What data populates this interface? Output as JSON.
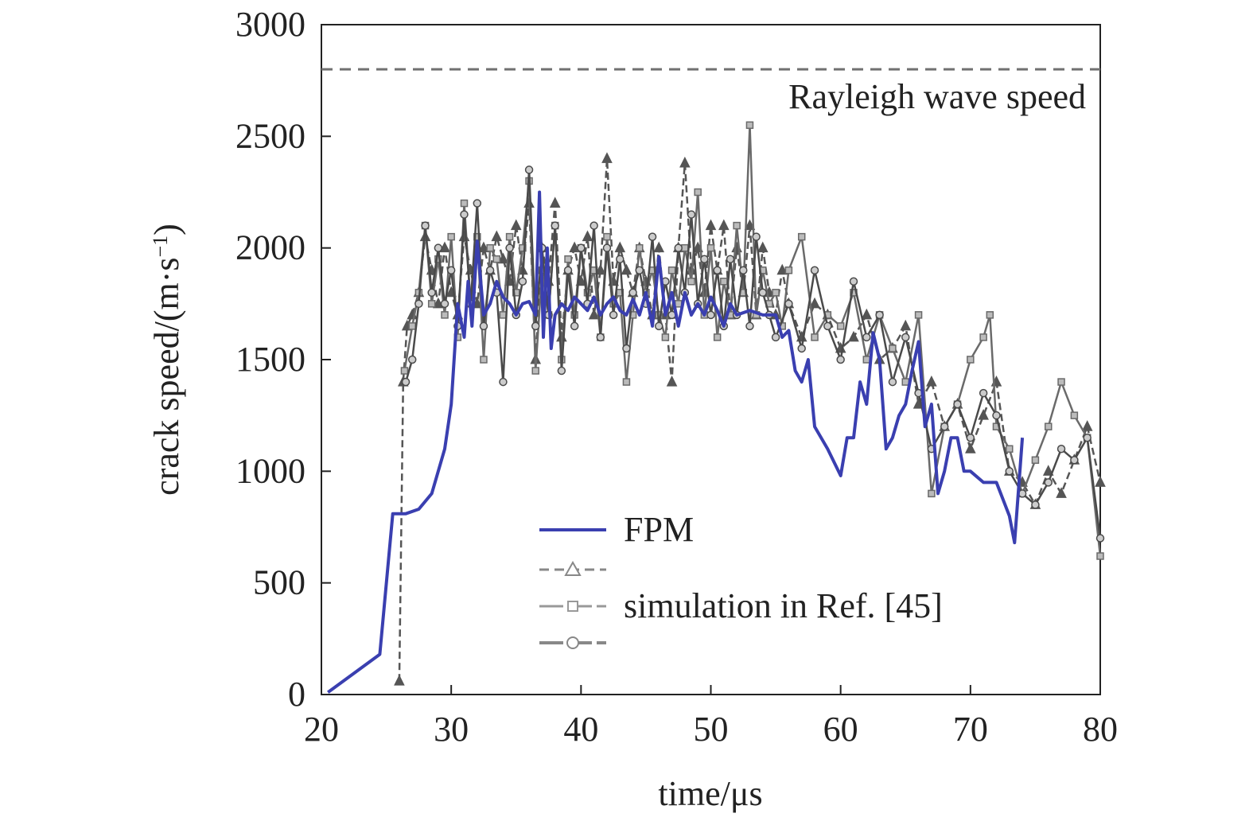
{
  "chart_data": {
    "type": "line",
    "xlabel": "time/μs",
    "ylabel": "crack speed/(m·s",
    "ylabel_sup": "−1",
    "ylabel_close": ")",
    "xlim": [
      20,
      80
    ],
    "ylim": [
      0,
      3000
    ],
    "xticks": [
      20,
      30,
      40,
      50,
      60,
      70,
      80
    ],
    "yticks": [
      0,
      500,
      1000,
      1500,
      2000,
      2500,
      3000
    ],
    "grid": false,
    "legend_position": "lower-center",
    "reference_line": {
      "y": 2800,
      "label": "Rayleigh wave speed",
      "style": "dashed",
      "color": "#707070"
    },
    "legend": [
      {
        "label": "FPM",
        "series_index": 0
      },
      {
        "label": "simulation in Ref. [45]",
        "series_index": [
          1,
          2,
          3
        ]
      }
    ],
    "series": [
      {
        "name": "FPM",
        "color": "#3a3fb0",
        "style": "solid",
        "marker": "none",
        "x": [
          20.5,
          24.5,
          25.5,
          26.5,
          27.5,
          28.5,
          29.5,
          30.0,
          30.5,
          31.0,
          31.3,
          31.6,
          32.0,
          32.5,
          33.0,
          33.5,
          34.0,
          34.5,
          35.0,
          35.5,
          36.0,
          36.5,
          36.8,
          37.1,
          37.4,
          37.7,
          38.0,
          38.5,
          39.0,
          39.5,
          40.0,
          40.5,
          41.0,
          41.5,
          42.0,
          42.5,
          43.0,
          43.5,
          44.0,
          44.5,
          45.0,
          45.5,
          46.0,
          46.5,
          47.0,
          47.5,
          48.0,
          48.5,
          49.0,
          49.5,
          50.0,
          50.5,
          51.0,
          51.5,
          52.0,
          53.0,
          54.0,
          55.0,
          55.5,
          56.0,
          56.5,
          57.0,
          57.5,
          58.0,
          59.0,
          60.0,
          60.5,
          61.0,
          61.5,
          62.0,
          62.5,
          63.0,
          63.5,
          64.0,
          64.5,
          65.0,
          65.5,
          66.0,
          66.5,
          67.0,
          67.5,
          68.0,
          68.5,
          69.0,
          69.5,
          70.0,
          71.0,
          72.0,
          73.0,
          73.4,
          74.0
        ],
        "y": [
          10,
          180,
          810,
          810,
          830,
          900,
          1100,
          1300,
          1750,
          1600,
          1850,
          1650,
          2030,
          1700,
          1750,
          1850,
          1780,
          1750,
          1700,
          1750,
          1760,
          1700,
          2250,
          1600,
          2000,
          1550,
          1700,
          1750,
          1720,
          1780,
          1750,
          1720,
          1780,
          1700,
          1750,
          1780,
          1720,
          1700,
          1770,
          1700,
          1800,
          1650,
          1960,
          1700,
          1800,
          1650,
          1800,
          1700,
          1750,
          1700,
          1780,
          1720,
          1650,
          1750,
          1700,
          1720,
          1700,
          1700,
          1600,
          1630,
          1450,
          1400,
          1500,
          1200,
          1100,
          980,
          1150,
          1150,
          1400,
          1300,
          1620,
          1500,
          1100,
          1150,
          1250,
          1300,
          1450,
          1580,
          1200,
          1300,
          900,
          1000,
          1150,
          1150,
          1000,
          1000,
          950,
          950,
          800,
          680,
          1150
        ]
      },
      {
        "name": "",
        "color": "#555555",
        "style": "dashed",
        "marker": "triangle",
        "x": [
          26.0,
          26.3,
          26.6,
          27.0,
          27.5,
          28.0,
          28.5,
          29.0,
          29.5,
          30.0,
          30.5,
          31.0,
          31.5,
          32.0,
          32.5,
          33.0,
          33.5,
          34.0,
          34.5,
          35.0,
          35.5,
          36.0,
          36.5,
          37.0,
          37.5,
          38.0,
          38.5,
          39.0,
          39.5,
          40.0,
          40.5,
          41.0,
          41.5,
          42.0,
          42.5,
          43.0,
          43.5,
          44.0,
          44.5,
          45.0,
          45.5,
          46.0,
          46.5,
          47.0,
          47.5,
          48.0,
          48.5,
          49.0,
          49.5,
          50.0,
          50.5,
          51.0,
          51.5,
          52.0,
          52.5,
          53.0,
          53.5,
          54.0,
          54.5,
          55.0,
          55.5,
          56.0,
          57.0,
          58.0,
          59.0,
          60.0,
          61.0,
          62.0,
          63.0,
          64.0,
          65.0,
          66.0,
          67.0,
          68.0,
          69.0,
          70.0,
          71.0,
          72.0,
          73.0,
          74.0,
          75.0,
          76.0,
          77.0,
          78.0,
          79.0,
          80.0
        ],
        "y": [
          60,
          1400,
          1650,
          1700,
          1800,
          2050,
          1900,
          1750,
          2000,
          1800,
          1700,
          2050,
          1900,
          1750,
          2000,
          1900,
          2050,
          1950,
          1850,
          2100,
          1900,
          2200,
          1500,
          2000,
          1850,
          2200,
          1600,
          1900,
          2000,
          1850,
          2050,
          1700,
          1900,
          2400,
          1850,
          2000,
          1900,
          1800,
          2000,
          1850,
          1700,
          2000,
          1700,
          1400,
          2000,
          2380,
          1900,
          2000,
          1800,
          2100,
          1900,
          2100,
          1700,
          2000,
          1800,
          2100,
          1700,
          2000,
          1800,
          1700,
          1900,
          1750,
          1600,
          1750,
          1700,
          1550,
          1600,
          1700,
          1500,
          1550,
          1650,
          1300,
          1400,
          1200,
          1300,
          1100,
          1250,
          1400,
          1000,
          950,
          850,
          1000,
          900,
          1050,
          1200,
          950
        ]
      },
      {
        "name": "",
        "color": "#6a6a6a",
        "style": "solid",
        "marker": "square",
        "x": [
          26.4,
          27.0,
          27.5,
          28.0,
          28.5,
          29.0,
          29.5,
          30.0,
          30.5,
          31.0,
          31.5,
          32.0,
          32.5,
          33.0,
          33.5,
          34.0,
          34.5,
          35.0,
          35.5,
          36.0,
          36.5,
          37.0,
          37.5,
          38.0,
          38.5,
          39.0,
          39.5,
          40.0,
          40.5,
          41.0,
          41.5,
          42.0,
          42.5,
          43.0,
          43.5,
          44.0,
          44.5,
          45.0,
          45.5,
          46.0,
          46.5,
          47.0,
          47.5,
          48.0,
          48.5,
          49.0,
          49.5,
          50.0,
          50.5,
          51.0,
          51.5,
          52.0,
          52.5,
          53.0,
          53.5,
          54.0,
          54.5,
          55.0,
          55.5,
          56.0,
          57.0,
          58.0,
          59.0,
          60.0,
          61.0,
          62.0,
          63.0,
          64.0,
          65.0,
          66.0,
          67.0,
          68.0,
          69.0,
          70.0,
          71.0,
          71.5,
          72.0,
          73.0,
          74.0,
          75.0,
          76.0,
          77.0,
          78.0,
          79.0,
          80.0
        ],
        "y": [
          1450,
          1650,
          1800,
          2100,
          1750,
          1950,
          1700,
          2050,
          1600,
          2200,
          1750,
          2050,
          1500,
          2000,
          1950,
          1700,
          2050,
          1800,
          2000,
          2300,
          1450,
          1900,
          1700,
          2100,
          1500,
          1950,
          1700,
          2000,
          1800,
          1900,
          1600,
          2050,
          1750,
          1800,
          1400,
          1700,
          2000,
          1800,
          1900,
          1700,
          1600,
          1900,
          1750,
          2000,
          1850,
          2250,
          1700,
          2000,
          1600,
          1850,
          1700,
          2100,
          1800,
          2550,
          1700,
          1900,
          1750,
          1800,
          1650,
          1900,
          2050,
          1600,
          1700,
          1650,
          1800,
          1500,
          1700,
          1550,
          1400,
          1700,
          900,
          1200,
          1300,
          1500,
          1600,
          1700,
          1200,
          1100,
          900,
          1050,
          1200,
          1400,
          1250,
          1150,
          620
        ]
      },
      {
        "name": "",
        "color": "#4a4a4a",
        "style": "solid",
        "marker": "circle",
        "x": [
          26.5,
          27.0,
          27.5,
          28.0,
          28.5,
          29.0,
          29.5,
          30.0,
          30.5,
          31.0,
          31.5,
          32.0,
          32.5,
          33.0,
          33.5,
          34.0,
          34.5,
          35.0,
          35.5,
          36.0,
          36.5,
          37.0,
          37.5,
          38.0,
          38.5,
          39.0,
          39.5,
          40.0,
          40.5,
          41.0,
          41.5,
          42.0,
          42.5,
          43.0,
          43.5,
          44.0,
          44.5,
          45.0,
          45.5,
          46.0,
          46.5,
          47.0,
          47.5,
          48.0,
          48.5,
          49.0,
          49.5,
          50.0,
          50.5,
          51.0,
          51.5,
          52.0,
          52.5,
          53.0,
          53.5,
          54.0,
          54.5,
          55.0,
          56.0,
          57.0,
          58.0,
          59.0,
          60.0,
          61.0,
          62.0,
          63.0,
          64.0,
          65.0,
          66.0,
          67.0,
          68.0,
          69.0,
          70.0,
          71.0,
          72.0,
          73.0,
          74.0,
          75.0,
          76.0,
          77.0,
          78.0,
          79.0,
          80.0
        ],
        "y": [
          1400,
          1500,
          1750,
          2100,
          1800,
          2000,
          1750,
          1900,
          1650,
          2150,
          1750,
          2200,
          1650,
          1900,
          1800,
          1400,
          2000,
          1700,
          1850,
          2350,
          1650,
          2000,
          1700,
          2100,
          1450,
          1900,
          1650,
          2000,
          1750,
          2100,
          1600,
          2000,
          1700,
          1950,
          1550,
          1800,
          1900,
          1750,
          2050,
          1650,
          1850,
          1700,
          2000,
          1800,
          2150,
          1750,
          1950,
          1700,
          1900,
          1650,
          1950,
          1700,
          1900,
          1650,
          2050,
          1800,
          1700,
          1600,
          1750,
          1550,
          1900,
          1650,
          1500,
          1850,
          1600,
          1700,
          1400,
          1600,
          1350,
          1100,
          1200,
          1300,
          1150,
          1350,
          1250,
          1000,
          900,
          850,
          950,
          1100,
          1050,
          1150,
          700
        ]
      }
    ]
  }
}
